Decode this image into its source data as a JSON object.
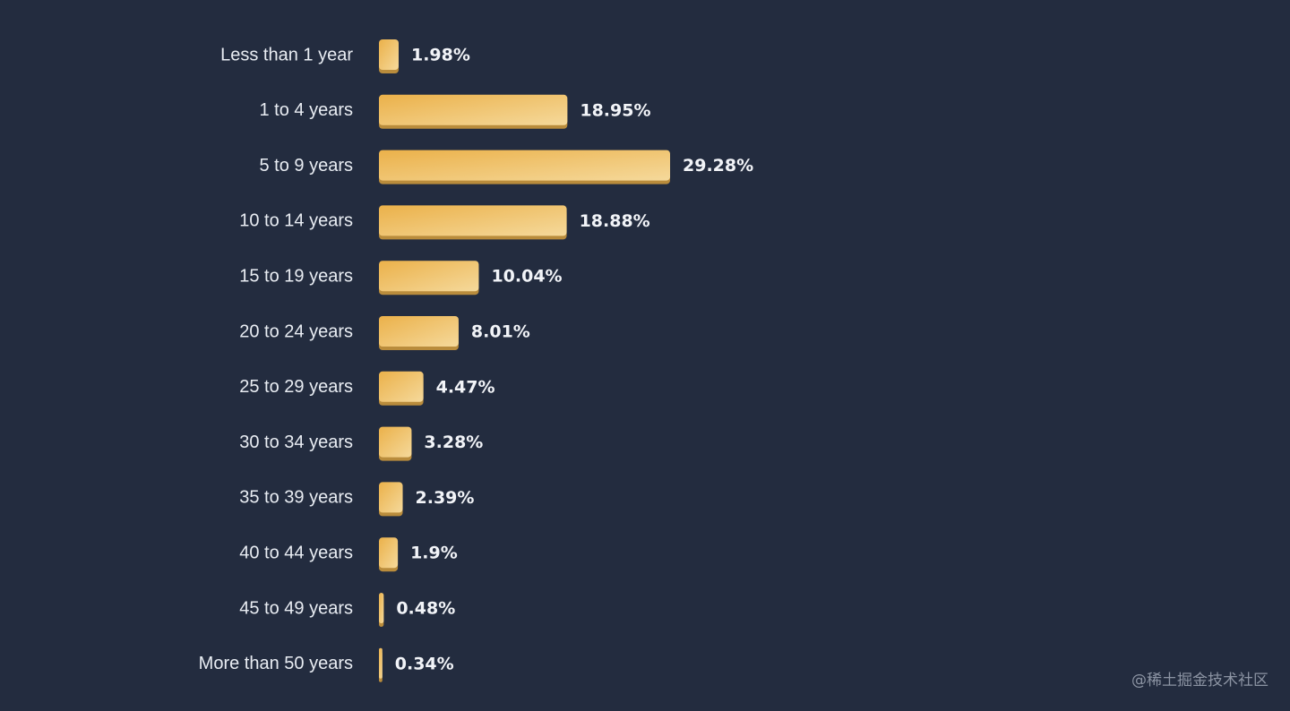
{
  "chart_data": {
    "type": "bar",
    "orientation": "horizontal",
    "categories": [
      "Less than 1 year",
      "1 to 4 years",
      "5 to 9 years",
      "10 to 14 years",
      "15 to 19 years",
      "20 to 24 years",
      "25 to 29 years",
      "30 to 34 years",
      "35 to 39 years",
      "40 to 44 years",
      "45 to 49 years",
      "More than 50 years"
    ],
    "values": [
      1.98,
      18.95,
      29.28,
      18.88,
      10.04,
      8.01,
      4.47,
      3.28,
      2.39,
      1.9,
      0.48,
      0.34
    ],
    "value_labels": [
      "1.98%",
      "18.95%",
      "29.28%",
      "18.88%",
      "10.04%",
      "8.01%",
      "4.47%",
      "3.28%",
      "2.39%",
      "1.9%",
      "0.48%",
      "0.34%"
    ],
    "unit": "%",
    "grid": false,
    "legend": "none"
  },
  "colors": {
    "background": "#232c3f",
    "bar_start": "#ebb14a",
    "bar_end": "#f5d99b",
    "bar_shadow": "#b98c3c",
    "label_text": "#e9edf3",
    "value_text": "#f2f4f8",
    "watermark_text": "#8c94a3"
  },
  "watermark": "@稀土掘金技术社区"
}
